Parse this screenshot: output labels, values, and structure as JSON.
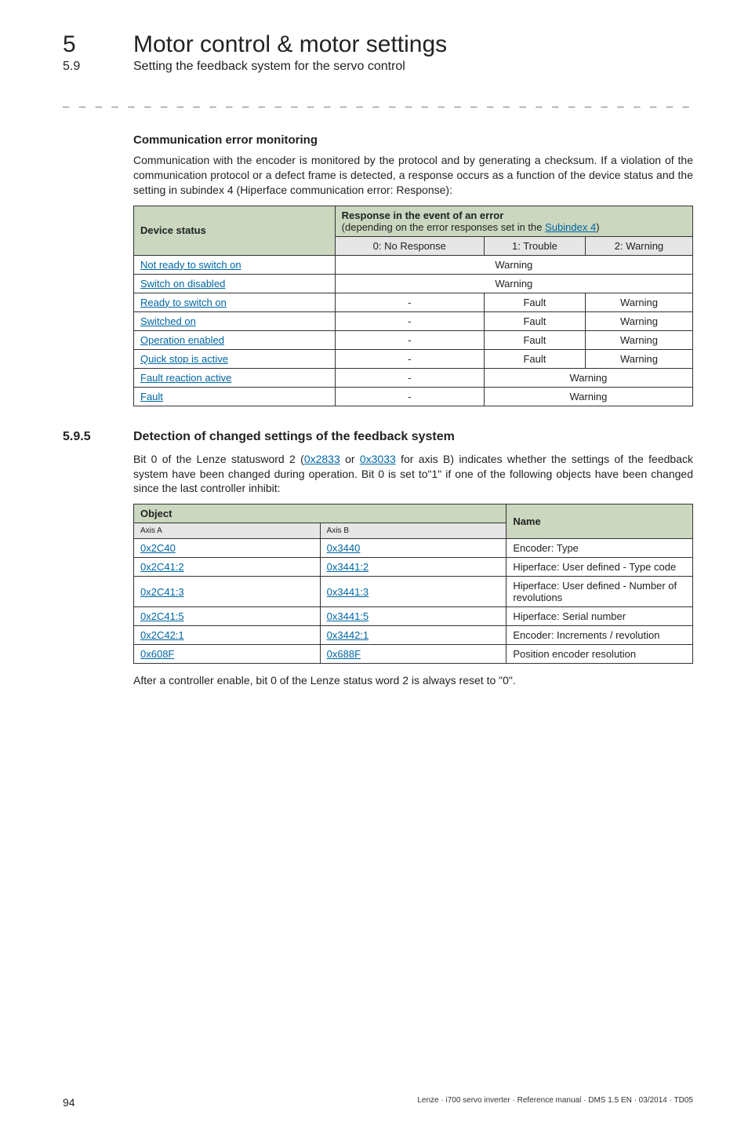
{
  "header": {
    "chapter_num": "5",
    "chapter_title": "Motor control & motor settings",
    "subhead_num": "5.9",
    "subhead_title": "Setting the feedback system for the servo control"
  },
  "dash_line": "_ _ _ _ _ _ _ _ _ _ _ _ _ _ _ _ _ _ _ _ _ _ _ _ _ _ _ _ _ _ _ _ _ _ _ _ _ _ _ _ _ _ _ _ _ _ _ _ _ _ _ _ _ _ _ _ _ _ _ _ _ _ _ _",
  "section1": {
    "heading": "Communication error monitoring",
    "para": "Communication with the encoder is monitored by the protocol and by generating a checksum. If a violation of the communication protocol or a defect frame is detected, a response occurs as a function of the device status and the setting in subindex 4 (Hiperface communication error: Response):",
    "table": {
      "hdr_device": "Device status",
      "hdr_response_pre": "Response in the event of an error",
      "hdr_response_paren_pre": "(depending on the error responses set in the ",
      "hdr_response_paren_link": "Subindex 4",
      "hdr_response_paren_post": ")",
      "sub0": "0: No Response",
      "sub1": "1: Trouble",
      "sub2": "2: Warning",
      "rows": [
        {
          "dev": "Not ready to switch on",
          "span3": "Warning"
        },
        {
          "dev": "Switch on disabled",
          "span3": "Warning"
        },
        {
          "dev": "Ready to switch on",
          "c0": "-",
          "c1": "Fault",
          "c2": "Warning"
        },
        {
          "dev": "Switched on",
          "c0": "-",
          "c1": "Fault",
          "c2": "Warning"
        },
        {
          "dev": "Operation enabled",
          "c0": "-",
          "c1": "Fault",
          "c2": "Warning"
        },
        {
          "dev": "Quick stop is active",
          "c0": "-",
          "c1": "Fault",
          "c2": "Warning"
        },
        {
          "dev": "Fault reaction active",
          "c0": "-",
          "span2": "Warning"
        },
        {
          "dev": "Fault",
          "c0": "-",
          "span2": "Warning"
        }
      ]
    }
  },
  "section2": {
    "num": "5.9.5",
    "title": "Detection of changed settings of the feedback system",
    "para_pre": "Bit 0 of the Lenze statusword 2 (",
    "para_link1": "0x2833",
    "para_mid": " or ",
    "para_link2": "0x3033",
    "para_post": " for axis B) indicates whether the settings of the feedback system have been changed during operation. Bit 0 is set to\"1\" if one of the following objects have been changed since the last controller inhibit:",
    "table": {
      "hdr_object": "Object",
      "hdr_name": "Name",
      "hdr_axisA": "Axis A",
      "hdr_axisB": "Axis B",
      "rows": [
        {
          "a": "0x2C40",
          "b": "0x3440",
          "n": "Encoder: Type"
        },
        {
          "a": "0x2C41:2",
          "b": "0x3441:2",
          "n": "Hiperface: User defined - Type code"
        },
        {
          "a": "0x2C41:3",
          "b": "0x3441:3",
          "n": "Hiperface: User defined - Number of revolutions"
        },
        {
          "a": "0x2C41:5",
          "b": "0x3441:5",
          "n": "Hiperface: Serial number"
        },
        {
          "a": "0x2C42:1",
          "b": "0x3442:1",
          "n": "Encoder: Increments / revolution"
        },
        {
          "a": "0x608F",
          "b": "0x688F",
          "n": "Position encoder resolution"
        }
      ]
    },
    "after": "After a controller enable, bit 0 of the Lenze status word 2 is always reset to \"0\"."
  },
  "footer": {
    "page": "94",
    "right": "Lenze · i700 servo inverter · Reference manual · DMS 1.5 EN · 03/2014 · TD05"
  }
}
